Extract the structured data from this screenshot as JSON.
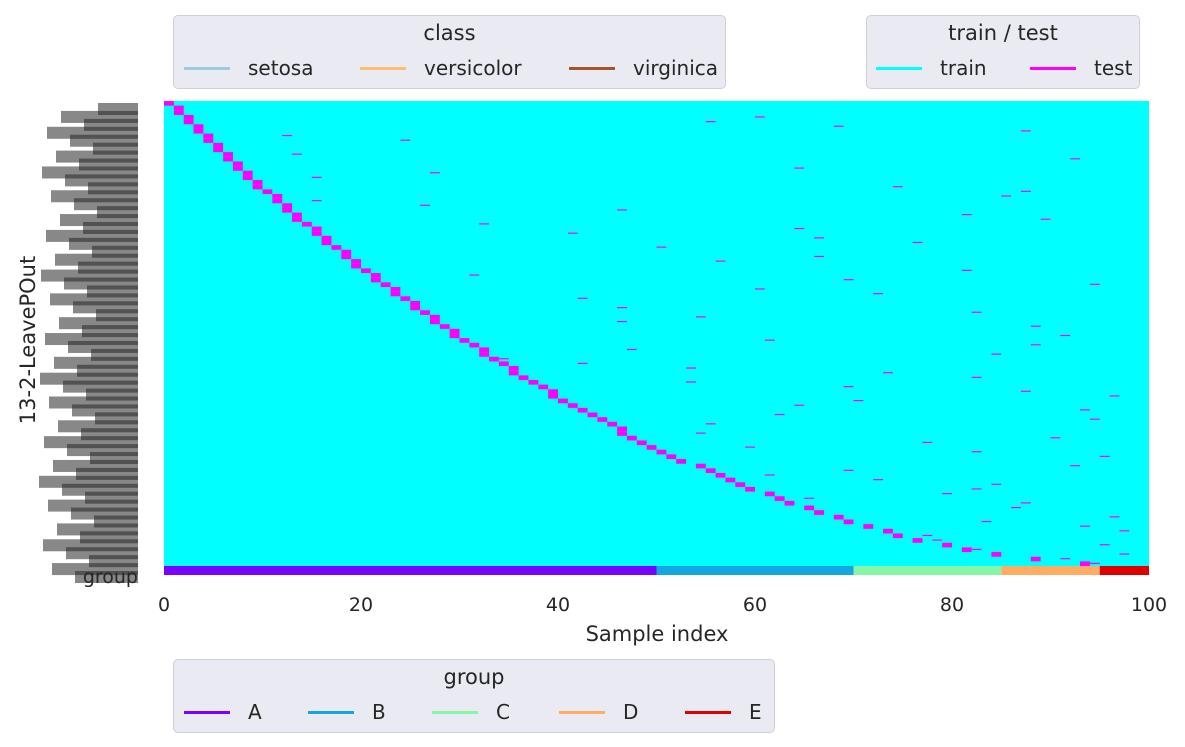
{
  "chart_data": {
    "type": "heatmap",
    "title": "",
    "xlabel": "Sample index",
    "ylabel": "13-2-LeavePOut",
    "xlim": [
      0,
      100
    ],
    "xticks": [
      0,
      20,
      40,
      60,
      80,
      100
    ],
    "xtick_labels": [
      "0",
      "20",
      "40",
      "60",
      "80",
      "100"
    ],
    "ytick_labels_overlapping": [
      "group"
    ],
    "n_samples": 100,
    "n_splits_shown": 100,
    "test_pattern": "each split leaves out 2 samples (one sample on a diagonal curve plus scattered samples)",
    "group_bar": [
      {
        "group": "A",
        "start": 0,
        "end": 50
      },
      {
        "group": "B",
        "start": 50,
        "end": 70
      },
      {
        "group": "C",
        "start": 70,
        "end": 85
      },
      {
        "group": "D",
        "start": 85,
        "end": 95
      },
      {
        "group": "E",
        "start": 95,
        "end": 100
      }
    ],
    "colors": {
      "train": "#00ffff",
      "test": "#ff00ff",
      "setosa": "#9ecae1",
      "versicolor": "#fdbf6f",
      "virginica": "#a6522a",
      "A": "#7a00ff",
      "B": "#13a6e0",
      "C": "#86f7a8",
      "D": "#ffad65",
      "E": "#e00000"
    },
    "legends": [
      {
        "title": "class",
        "entries": [
          "setosa",
          "versicolor",
          "virginica"
        ]
      },
      {
        "title": "train / test",
        "entries": [
          "train",
          "test"
        ]
      },
      {
        "title": "group",
        "entries": [
          "A",
          "B",
          "C",
          "D",
          "E"
        ]
      }
    ]
  }
}
